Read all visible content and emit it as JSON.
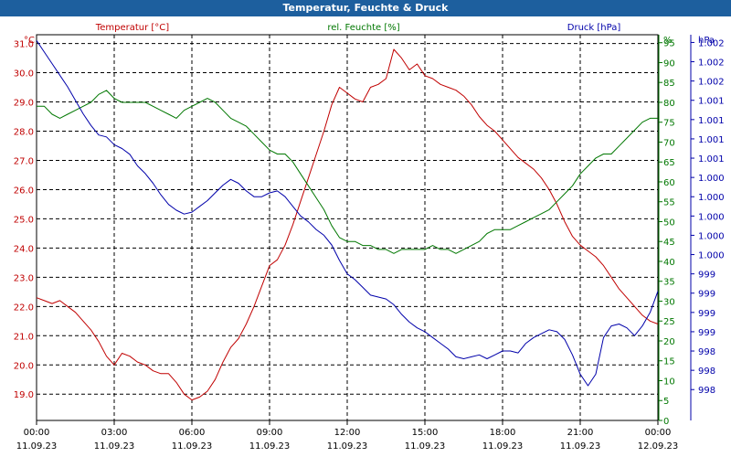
{
  "window": {
    "title": "Temperatur, Feuchte & Druck"
  },
  "colors": {
    "temperature": "#c00000",
    "humidity": "#007700",
    "pressure": "#0000aa",
    "title_bg": "#1d5f9e",
    "grid": "#000000"
  },
  "chart_data": {
    "type": "line",
    "title": "Temperatur, Feuchte & Druck",
    "legend": [
      "Temperatur [°C]",
      "rel. Feuchte [%]",
      "Druck [hPa]"
    ],
    "axes": {
      "temperature": {
        "unit": "°C",
        "range": [
          18.1,
          31.3
        ],
        "ticks": [
          "31.0",
          "30.0",
          "29.0",
          "28.0",
          "27.0",
          "26.0",
          "25.0",
          "24.0",
          "23.0",
          "22.0",
          "21.0",
          "20.0",
          "19.0"
        ],
        "tick_values": [
          31,
          30,
          29,
          28,
          27,
          26,
          25,
          24,
          23,
          22,
          21,
          20,
          19
        ]
      },
      "humidity": {
        "unit": "%",
        "range": [
          0,
          97
        ],
        "ticks": [
          "95",
          "90",
          "85",
          "80",
          "75",
          "70",
          "65",
          "60",
          "55",
          "50",
          "45",
          "40",
          "35",
          "30",
          "25",
          "20",
          "15",
          "10",
          "5",
          "0"
        ],
        "tick_values": [
          95,
          90,
          85,
          80,
          75,
          70,
          65,
          60,
          55,
          50,
          45,
          40,
          35,
          30,
          25,
          20,
          15,
          10,
          5,
          0
        ]
      },
      "pressure": {
        "unit": "hPa",
        "range": [
          0,
          20
        ],
        "ticks": [
          "1.002",
          "1.002",
          "1.002",
          "1.001",
          "1.001",
          "1.001",
          "1.001",
          "1.000",
          "1.000",
          "1.000",
          "1.000",
          "1.000",
          "999",
          "999",
          "999",
          "999",
          "998",
          "998",
          "998"
        ],
        "tick_values": [
          19.6,
          18.6,
          17.6,
          16.6,
          15.6,
          14.6,
          13.6,
          12.6,
          11.6,
          10.6,
          9.6,
          8.6,
          7.6,
          6.6,
          5.6,
          4.6,
          3.6,
          2.6,
          1.6
        ]
      }
    },
    "x_ticks": [
      {
        "time": "00:00",
        "date": "11.09.23"
      },
      {
        "time": "03:00",
        "date": "11.09.23"
      },
      {
        "time": "06:00",
        "date": "11.09.23"
      },
      {
        "time": "09:00",
        "date": "11.09.23"
      },
      {
        "time": "12:00",
        "date": "11.09.23"
      },
      {
        "time": "15:00",
        "date": "11.09.23"
      },
      {
        "time": "18:00",
        "date": "11.09.23"
      },
      {
        "time": "21:00",
        "date": "11.09.23"
      },
      {
        "time": "00:00",
        "date": "12.09.23"
      }
    ],
    "x_range_hours": [
      0,
      24
    ],
    "series": [
      {
        "name": "Temperatur [°C]",
        "axis": "temperature",
        "x": [
          0,
          0.3,
          0.6,
          0.9,
          1.2,
          1.5,
          1.8,
          2.1,
          2.4,
          2.7,
          3.0,
          3.3,
          3.6,
          3.9,
          4.2,
          4.5,
          4.8,
          5.1,
          5.4,
          5.7,
          6.0,
          6.3,
          6.6,
          6.9,
          7.2,
          7.5,
          7.8,
          8.1,
          8.4,
          8.7,
          9.0,
          9.3,
          9.6,
          9.9,
          10.2,
          10.5,
          10.8,
          11.1,
          11.4,
          11.7,
          12.0,
          12.3,
          12.6,
          12.9,
          13.2,
          13.5,
          13.8,
          14.1,
          14.4,
          14.7,
          15.0,
          15.3,
          15.6,
          15.9,
          16.2,
          16.5,
          16.8,
          17.1,
          17.4,
          17.7,
          18.0,
          18.3,
          18.6,
          18.9,
          19.2,
          19.5,
          19.8,
          20.1,
          20.4,
          20.7,
          21.0,
          21.3,
          21.6,
          21.9,
          22.2,
          22.5,
          22.8,
          23.1,
          23.4,
          23.7,
          24.0
        ],
        "values": [
          22.3,
          22.2,
          22.1,
          22.2,
          22.0,
          21.8,
          21.5,
          21.2,
          20.8,
          20.3,
          20.0,
          20.4,
          20.3,
          20.1,
          20.0,
          19.8,
          19.7,
          19.7,
          19.4,
          19.0,
          18.8,
          18.9,
          19.1,
          19.5,
          20.1,
          20.6,
          20.9,
          21.4,
          22.0,
          22.7,
          23.4,
          23.6,
          24.1,
          24.8,
          25.6,
          26.4,
          27.2,
          28.0,
          28.9,
          29.5,
          29.3,
          29.1,
          29.0,
          29.5,
          29.6,
          29.8,
          30.8,
          30.5,
          30.1,
          30.3,
          29.9,
          29.8,
          29.6,
          29.5,
          29.4,
          29.2,
          28.9,
          28.5,
          28.2,
          28.0,
          27.7,
          27.4,
          27.1,
          26.9,
          26.7,
          26.4,
          26.0,
          25.5,
          24.9,
          24.4,
          24.1,
          23.9,
          23.7,
          23.4,
          23.0,
          22.6,
          22.3,
          22.0,
          21.7,
          21.5,
          21.4
        ]
      },
      {
        "name": "rel. Feuchte [%]",
        "axis": "humidity",
        "x": [
          0,
          0.3,
          0.6,
          0.9,
          1.2,
          1.5,
          1.8,
          2.1,
          2.4,
          2.7,
          3.0,
          3.3,
          3.6,
          3.9,
          4.2,
          4.5,
          4.8,
          5.1,
          5.4,
          5.7,
          6.0,
          6.3,
          6.6,
          6.9,
          7.2,
          7.5,
          7.8,
          8.1,
          8.4,
          8.7,
          9.0,
          9.3,
          9.6,
          9.9,
          10.2,
          10.5,
          10.8,
          11.1,
          11.4,
          11.7,
          12.0,
          12.3,
          12.6,
          12.9,
          13.2,
          13.5,
          13.8,
          14.1,
          14.4,
          14.7,
          15.0,
          15.3,
          15.6,
          15.9,
          16.2,
          16.5,
          16.8,
          17.1,
          17.4,
          17.7,
          18.0,
          18.3,
          18.6,
          18.9,
          19.2,
          19.5,
          19.8,
          20.1,
          20.4,
          20.7,
          21.0,
          21.3,
          21.6,
          21.9,
          22.2,
          22.5,
          22.8,
          23.1,
          23.4,
          23.7,
          24.0
        ],
        "values": [
          79,
          79,
          77,
          76,
          77,
          78,
          79,
          80,
          82,
          83,
          81,
          80,
          80,
          80,
          80,
          79,
          78,
          77,
          76,
          78,
          79,
          80,
          81,
          80,
          78,
          76,
          75,
          74,
          72,
          70,
          68,
          67,
          67,
          65,
          62,
          59,
          56,
          53,
          49,
          46,
          45,
          45,
          44,
          44,
          43,
          43,
          42,
          43,
          43,
          43,
          43,
          44,
          43,
          43,
          42,
          43,
          44,
          45,
          47,
          48,
          48,
          48,
          49,
          50,
          51,
          52,
          53,
          55,
          57,
          59,
          62,
          64,
          66,
          67,
          67,
          69,
          71,
          73,
          75,
          76,
          76
        ]
      },
      {
        "name": "Druck [hPa]",
        "axis": "pressure",
        "x": [
          0,
          0.3,
          0.6,
          0.9,
          1.2,
          1.5,
          1.8,
          2.1,
          2.4,
          2.7,
          3.0,
          3.3,
          3.6,
          3.9,
          4.2,
          4.5,
          4.8,
          5.1,
          5.4,
          5.7,
          6.0,
          6.3,
          6.6,
          6.9,
          7.2,
          7.5,
          7.8,
          8.1,
          8.4,
          8.7,
          9.0,
          9.3,
          9.6,
          9.9,
          10.2,
          10.5,
          10.8,
          11.1,
          11.4,
          11.7,
          12.0,
          12.3,
          12.6,
          12.9,
          13.2,
          13.5,
          13.8,
          14.1,
          14.4,
          14.7,
          15.0,
          15.3,
          15.6,
          15.9,
          16.2,
          16.5,
          16.8,
          17.1,
          17.4,
          17.7,
          18.0,
          18.3,
          18.6,
          18.9,
          19.2,
          19.5,
          19.8,
          20.1,
          20.4,
          20.7,
          21.0,
          21.3,
          21.6,
          21.9,
          22.2,
          22.5,
          22.8,
          23.1,
          23.4,
          23.7,
          24.0
        ],
        "values": [
          19.7,
          19.1,
          18.5,
          17.9,
          17.3,
          16.6,
          15.9,
          15.3,
          14.8,
          14.7,
          14.3,
          14.1,
          13.8,
          13.2,
          12.8,
          12.3,
          11.7,
          11.2,
          10.9,
          10.7,
          10.8,
          11.1,
          11.4,
          11.8,
          12.2,
          12.5,
          12.3,
          11.9,
          11.6,
          11.6,
          11.8,
          11.9,
          11.6,
          11.1,
          10.6,
          10.3,
          9.9,
          9.6,
          9.1,
          8.3,
          7.6,
          7.3,
          6.9,
          6.5,
          6.4,
          6.3,
          6.0,
          5.5,
          5.1,
          4.8,
          4.6,
          4.3,
          4.0,
          3.7,
          3.3,
          3.2,
          3.3,
          3.4,
          3.2,
          3.4,
          3.6,
          3.6,
          3.5,
          4.0,
          4.3,
          4.5,
          4.7,
          4.6,
          4.2,
          3.4,
          2.4,
          1.8,
          2.4,
          4.3,
          4.9,
          5.0,
          4.8,
          4.4,
          4.9,
          5.6,
          6.7
        ]
      }
    ]
  }
}
